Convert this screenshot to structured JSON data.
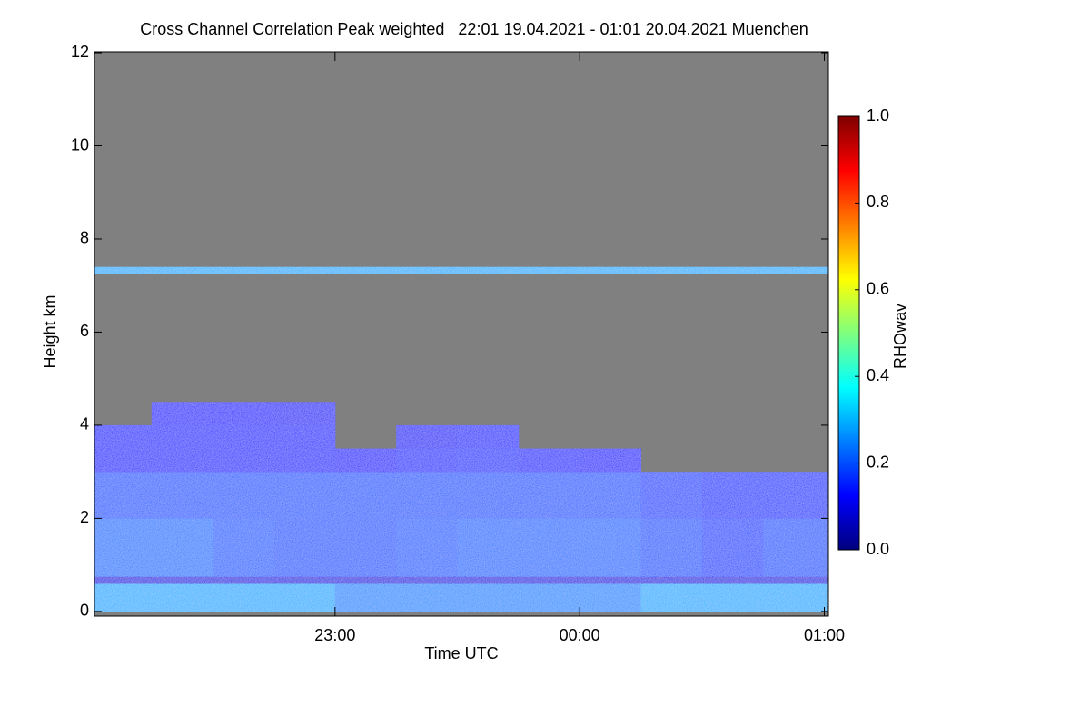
{
  "chart_data": {
    "type": "heatmap",
    "title": "Cross Channel Correlation Peak weighted   22:01 19.04.2021 - 01:01 20.04.2021 Muenchen",
    "xlabel": "Time UTC",
    "ylabel": "Height km",
    "colorbar_label": "RHOwav",
    "xlim": [
      22.0167,
      25.0167
    ],
    "xticks": [
      {
        "value": 23,
        "label": "23:00"
      },
      {
        "value": 24,
        "label": "00:00"
      },
      {
        "value": 25,
        "label": "01:00"
      }
    ],
    "ylim": [
      -0.1,
      12.02
    ],
    "yticks": [
      0,
      2,
      4,
      6,
      8,
      10,
      12
    ],
    "clim": [
      0,
      1
    ],
    "cticks": [
      {
        "value": 0,
        "label": "0.0"
      },
      {
        "value": 0.2,
        "label": "0.2"
      },
      {
        "value": 0.4,
        "label": "0.4"
      },
      {
        "value": 0.6,
        "label": "0.6"
      },
      {
        "value": 0.8,
        "label": "0.8"
      },
      {
        "value": 1,
        "label": "1.0"
      }
    ],
    "colormap": [
      "#00007f",
      "#0000ff",
      "#007fff",
      "#00ffff",
      "#7fff7f",
      "#ffff00",
      "#ff7f00",
      "#ff0000",
      "#7f0000"
    ],
    "missing_color": "#808080",
    "x_bins": [
      22.0167,
      22.25,
      22.5,
      22.75,
      23,
      23.25,
      23.5,
      23.75,
      24,
      24.25,
      24.5,
      24.75,
      25.0167
    ],
    "y_bins": [
      0,
      0.6,
      0.75,
      2,
      3,
      3.5,
      4,
      4.5,
      7.25,
      7.4,
      12
    ],
    "values": [
      [
        0.3,
        0.3,
        0.3,
        0.3,
        0.27,
        0.27,
        0.27,
        0.27,
        0.27,
        0.3,
        0.3,
        0.3
      ],
      [
        0.1,
        0.1,
        0.1,
        0.1,
        0.1,
        0.1,
        0.1,
        0.1,
        0.1,
        0.1,
        0.1,
        0.1
      ],
      [
        0.25,
        0.25,
        0.23,
        0.22,
        0.22,
        0.23,
        0.24,
        0.24,
        0.24,
        0.22,
        0.2,
        0.22
      ],
      [
        0.22,
        0.22,
        0.22,
        0.22,
        0.22,
        0.22,
        0.22,
        0.22,
        0.22,
        0.2,
        0.18,
        0.18
      ],
      [
        0.15,
        0.15,
        0.15,
        0.15,
        0.13,
        0.16,
        0.17,
        0.15,
        0.13,
        null,
        null,
        null
      ],
      [
        0.15,
        0.15,
        0.15,
        0.15,
        null,
        0.12,
        0.15,
        null,
        null,
        null,
        null,
        null
      ],
      [
        null,
        0.13,
        0.13,
        0.12,
        null,
        null,
        null,
        null,
        null,
        null,
        null,
        null
      ],
      [
        null,
        null,
        null,
        null,
        null,
        null,
        null,
        null,
        null,
        null,
        null,
        null
      ],
      [
        0.3,
        0.3,
        0.3,
        0.3,
        0.3,
        0.3,
        0.3,
        0.3,
        0.3,
        0.3,
        0.3,
        0.3
      ],
      [
        null,
        null,
        null,
        null,
        null,
        null,
        null,
        null,
        null,
        null,
        null,
        null
      ]
    ]
  }
}
